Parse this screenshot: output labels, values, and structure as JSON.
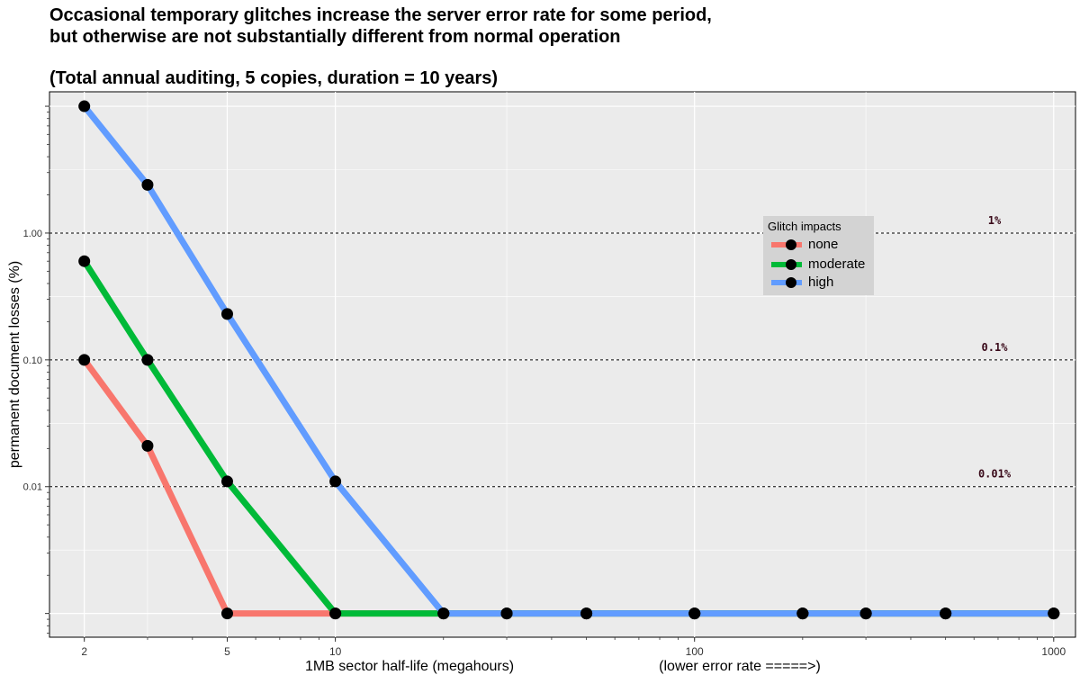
{
  "title": {
    "line1": "Occasional temporary glitches increase the server error rate for some period,",
    "line2": "but otherwise are not substantially different from normal operation",
    "line3": "(Total annual auditing, 5 copies, duration = 10 years)"
  },
  "chart_data": {
    "type": "line",
    "xlabel": "1MB sector half-life (megahours)",
    "xlabel_note": "(lower error rate =====>)",
    "ylabel": "permanent document losses (%)",
    "x_scale": "log10",
    "y_scale": "log10",
    "xlim": [
      1.6,
      1150
    ],
    "ylim": [
      0.00065,
      13
    ],
    "x_ticks": [
      2,
      5,
      10,
      100,
      1000
    ],
    "x_tick_labels": [
      "2",
      "5",
      "10",
      "100",
      "1000"
    ],
    "y_ticks": [
      0.01,
      0.1,
      1
    ],
    "y_tick_labels": [
      "0.01",
      "0.10",
      "1.00"
    ],
    "grid": true,
    "legend": {
      "title": "Glitch impacts",
      "position": "right"
    },
    "reference_lines": [
      {
        "y": 1,
        "label": "1%"
      },
      {
        "y": 0.1,
        "label": "0.1%"
      },
      {
        "y": 0.01,
        "label": "0.01%"
      }
    ],
    "series": [
      {
        "name": "none",
        "color": "#f8766d",
        "x": [
          2,
          3,
          5,
          10,
          20,
          30,
          50,
          100,
          200,
          300,
          500,
          1000
        ],
        "y": [
          0.1,
          0.021,
          0.001,
          0.001,
          0.001,
          0.001,
          0.001,
          0.001,
          0.001,
          0.001,
          0.001,
          0.001
        ]
      },
      {
        "name": "moderate",
        "color": "#00ba38",
        "x": [
          2,
          3,
          5,
          10,
          20,
          30,
          50,
          100,
          200,
          300,
          500,
          1000
        ],
        "y": [
          0.6,
          0.1,
          0.011,
          0.001,
          0.001,
          0.001,
          0.001,
          0.001,
          0.001,
          0.001,
          0.001,
          0.001
        ]
      },
      {
        "name": "high",
        "color": "#619cff",
        "x": [
          2,
          3,
          5,
          10,
          20,
          30,
          50,
          100,
          200,
          300,
          500,
          1000
        ],
        "y": [
          10,
          2.4,
          0.23,
          0.011,
          0.001,
          0.001,
          0.001,
          0.001,
          0.001,
          0.001,
          0.001,
          0.001
        ]
      }
    ]
  }
}
